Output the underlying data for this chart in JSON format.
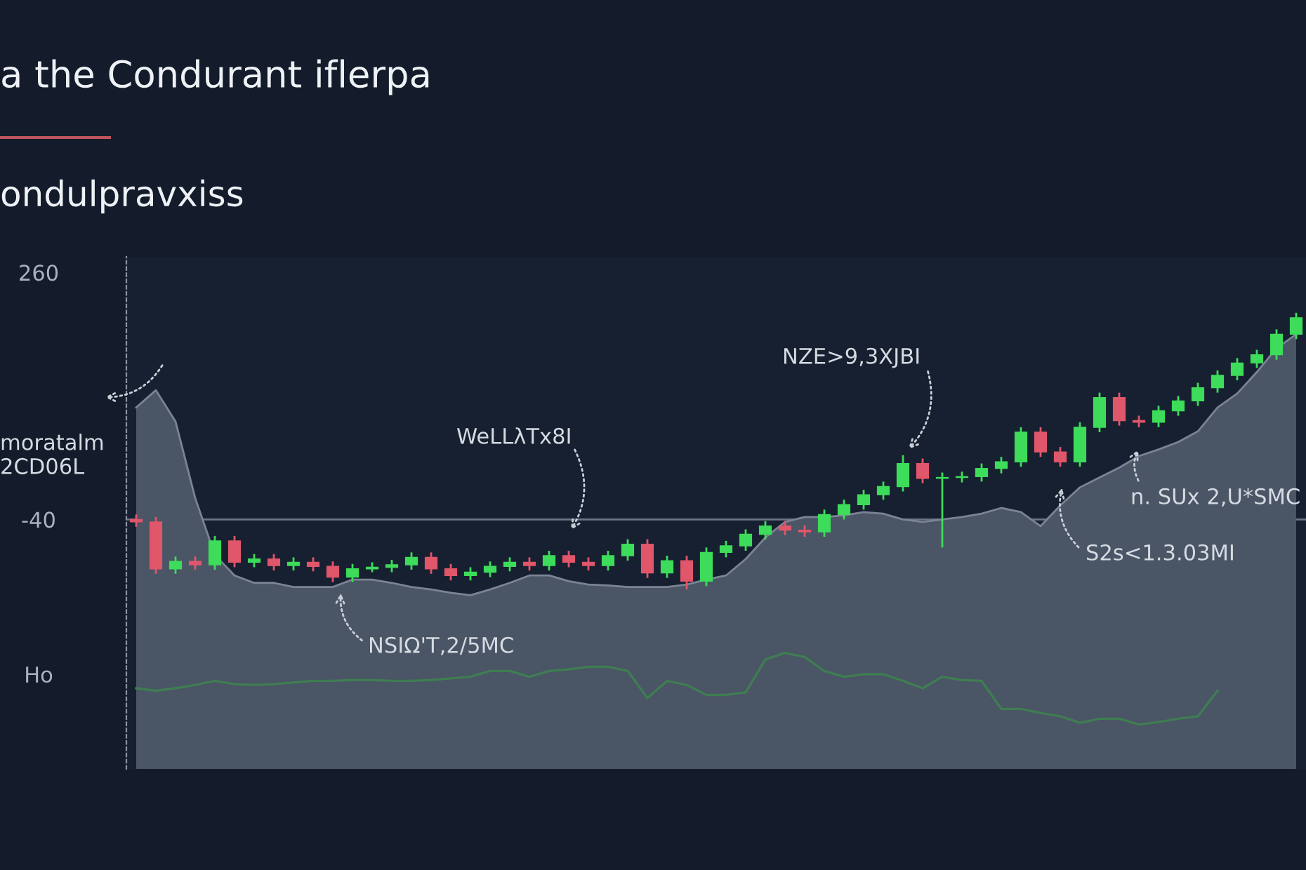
{
  "chart_data": {
    "type": "candlestick",
    "title": "a the Condurant iflerpa",
    "subtitle": "ondulpravxiss",
    "categories": [
      null,
      null,
      null,
      null,
      null,
      null,
      null,
      null,
      null,
      null,
      null,
      null,
      null,
      null,
      null,
      null,
      null,
      null,
      null,
      null,
      null,
      null,
      null,
      null,
      null,
      null,
      null,
      null,
      null,
      null,
      null,
      null,
      null,
      null,
      null,
      null,
      null,
      null,
      null,
      null,
      null,
      null,
      null,
      null,
      null,
      null,
      null,
      null,
      null,
      null,
      null,
      null,
      null,
      null,
      null,
      null,
      null,
      null,
      null,
      null
    ],
    "ohlc": [
      [
        -40,
        -34,
        -49,
        -43
      ],
      [
        -43,
        -37,
        -106,
        -100
      ],
      [
        -100,
        -85,
        -106,
        -91
      ],
      [
        -91,
        -85,
        -101,
        -95
      ],
      [
        -95,
        -60,
        -101,
        -66
      ],
      [
        -66,
        -60,
        -98,
        -92
      ],
      [
        -92,
        -82,
        -98,
        -88
      ],
      [
        -88,
        -82,
        -102,
        -96
      ],
      [
        -96,
        -86,
        -102,
        -92
      ],
      [
        -92,
        -86,
        -103,
        -97
      ],
      [
        -97,
        -91,
        -116,
        -110
      ],
      [
        -110,
        -94,
        -116,
        -100
      ],
      [
        -100,
        -92,
        -104,
        -98
      ],
      [
        -98,
        -89,
        -104,
        -95
      ],
      [
        -95,
        -80,
        -101,
        -86
      ],
      [
        -86,
        -80,
        -106,
        -100
      ],
      [
        -100,
        -94,
        -114,
        -108
      ],
      [
        -108,
        -98,
        -114,
        -104
      ],
      [
        -104,
        -91,
        -110,
        -97
      ],
      [
        -97,
        -86,
        -103,
        -92
      ],
      [
        -92,
        -86,
        -102,
        -96
      ],
      [
        -96,
        -78,
        -102,
        -84
      ],
      [
        -84,
        -78,
        -98,
        -92
      ],
      [
        -92,
        -86,
        -102,
        -96
      ],
      [
        -96,
        -78,
        -102,
        -84
      ],
      [
        -84,
        -64,
        -90,
        -70
      ],
      [
        -70,
        -64,
        -111,
        -105
      ],
      [
        -105,
        -84,
        -111,
        -90
      ],
      [
        -90,
        -84,
        -125,
        -115
      ],
      [
        -115,
        -74,
        -121,
        -80
      ],
      [
        -80,
        -66,
        -86,
        -72
      ],
      [
        -72,
        -52,
        -78,
        -58
      ],
      [
        -58,
        -42,
        -64,
        -48
      ],
      [
        -48,
        -42,
        -59,
        -53
      ],
      [
        -53,
        -47,
        -61,
        -55
      ],
      [
        -55,
        -28,
        -61,
        -34
      ],
      [
        -34,
        -16,
        -40,
        -22
      ],
      [
        -22,
        -4,
        -28,
        -10
      ],
      [
        -10,
        6,
        -16,
        0
      ],
      [
        0,
        38,
        -6,
        28
      ],
      [
        28,
        34,
        4,
        10
      ],
      [
        10,
        17,
        -74,
        11
      ],
      [
        11,
        18,
        5,
        12
      ],
      [
        12,
        28,
        6,
        22
      ],
      [
        22,
        36,
        16,
        30
      ],
      [
        30,
        72,
        24,
        66
      ],
      [
        66,
        72,
        36,
        42
      ],
      [
        42,
        48,
        24,
        30
      ],
      [
        30,
        78,
        24,
        72
      ],
      [
        72,
        114,
        66,
        108
      ],
      [
        108,
        114,
        74,
        80
      ],
      [
        80,
        86,
        72,
        78
      ],
      [
        78,
        98,
        72,
        92
      ],
      [
        92,
        110,
        86,
        104
      ],
      [
        104,
        126,
        98,
        120
      ],
      [
        120,
        141,
        114,
        135
      ],
      [
        135,
        156,
        129,
        150
      ],
      [
        150,
        166,
        144,
        160
      ],
      [
        160,
        191,
        154,
        185
      ],
      [
        185,
        211,
        179,
        205
      ]
    ],
    "colors": [
      "#e0566a",
      "#e0566a",
      "#3ddc5a",
      "#e0566a",
      "#3ddc5a",
      "#e0566a",
      "#3ddc5a",
      "#e0566a",
      "#3ddc5a",
      "#e0566a",
      "#e0566a",
      "#3ddc5a",
      "#3ddc5a",
      "#3ddc5a",
      "#3ddc5a",
      "#e0566a",
      "#e0566a",
      "#3ddc5a",
      "#3ddc5a",
      "#3ddc5a",
      "#e0566a",
      "#3ddc5a",
      "#e0566a",
      "#e0566a",
      "#3ddc5a",
      "#3ddc5a",
      "#e0566a",
      "#3ddc5a",
      "#e0566a",
      "#3ddc5a",
      "#3ddc5a",
      "#3ddc5a",
      "#3ddc5a",
      "#e0566a",
      "#e0566a",
      "#3ddc5a",
      "#3ddc5a",
      "#3ddc5a",
      "#3ddc5a",
      "#3ddc5a",
      "#e0566a",
      "#3ddc5a",
      "#3ddc5a",
      "#3ddc5a",
      "#3ddc5a",
      "#3ddc5a",
      "#e0566a",
      "#e0566a",
      "#3ddc5a",
      "#3ddc5a",
      "#e0566a",
      "#e0566a",
      "#3ddc5a",
      "#3ddc5a",
      "#3ddc5a",
      "#3ddc5a",
      "#3ddc5a",
      "#3ddc5a",
      "#3ddc5a",
      "#3ddc5a"
    ],
    "series": [
      {
        "type": "area",
        "color": "#4a5566",
        "values": [
          96,
          117,
          79,
          -14,
          -83,
          -108,
          -117,
          -117,
          -122,
          -122,
          -122,
          -113,
          -113,
          -117,
          -122,
          -125,
          -129,
          -132,
          -125,
          -117,
          -108,
          -108,
          -115,
          -119,
          -120,
          -122,
          -122,
          -122,
          -119,
          -113,
          -108,
          -88,
          -62,
          -43,
          -37,
          -37,
          -35,
          -31,
          -33,
          -40,
          -43,
          -40,
          -37,
          -33,
          -26,
          -31,
          -48,
          -23,
          -1,
          11,
          23,
          37,
          45,
          54,
          67,
          96,
          113,
          139,
          168,
          185
        ]
      },
      {
        "type": "line",
        "color": "#3f7d52",
        "values": [
          -245,
          -248,
          -245,
          -241,
          -236,
          -240,
          -241,
          -240,
          -238,
          -236,
          -236,
          -235,
          -235,
          -236,
          -236,
          -235,
          -233,
          -231,
          -224,
          -224,
          -231,
          -224,
          -222,
          -219,
          -219,
          -224,
          -257,
          -236,
          -241,
          -253,
          -253,
          -250,
          -210,
          -202,
          -207,
          -224,
          -231,
          -228,
          -228,
          -236,
          -245,
          -231,
          -235,
          -236,
          -270,
          -270,
          -275,
          -279,
          -287,
          -282,
          -282,
          -289,
          -286,
          -282,
          -279,
          -248,
          null,
          null,
          null,
          null
        ]
      }
    ],
    "ylim": [
      -343,
      279
    ],
    "yticks": [
      260,
      -40,
      {
        "value": -228,
        "label": "Ho"
      }
    ],
    "ref_lines": [
      {
        "axis": "y",
        "value": -40,
        "color": "#6b7585"
      }
    ],
    "annotations": [
      "moratalm\n2CD06L",
      "WeLLλTx8I",
      "NZE>9,3XJBI",
      "NSIΩ'T,2/5MC",
      "n. SUx 2,U*SMC",
      "S2s<1.3.03MI"
    ],
    "grid": false,
    "legend": false
  }
}
